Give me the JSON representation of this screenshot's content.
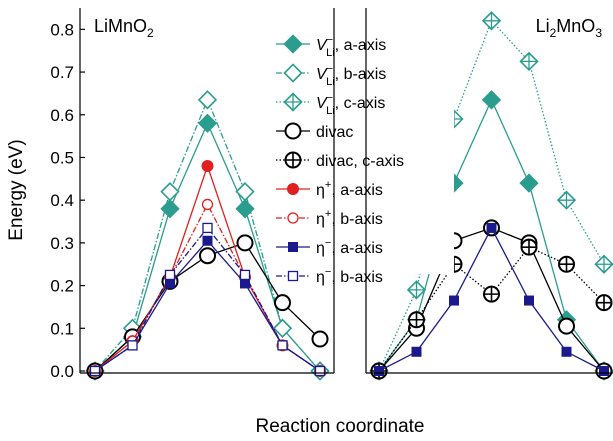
{
  "chart_data": {
    "type": "line",
    "xlabel": "Reaction coordinate",
    "ylabel": "Energy (eV)",
    "ylim": [
      0.0,
      0.85
    ],
    "yticks": [
      0.0,
      0.1,
      0.2,
      0.3,
      0.4,
      0.5,
      0.6,
      0.7,
      0.8
    ],
    "ytick_labels": [
      "0.0",
      "0.1",
      "0.2",
      "0.3",
      "0.4",
      "0.5",
      "0.6",
      "0.7",
      "0.8"
    ],
    "grid": false,
    "legend_placement": "top-center",
    "panels": [
      {
        "title": "LiMnO",
        "title_sub": "2",
        "series": [
          {
            "key": "va",
            "values": [
              0.0,
              0.08,
              0.38,
              0.58,
              0.38,
              0.1,
              0.0
            ]
          },
          {
            "key": "vb",
            "values": [
              0.0,
              0.1,
              0.42,
              0.635,
              0.42,
              0.1,
              0.0
            ]
          },
          {
            "key": "dv",
            "values": [
              0.0,
              0.08,
              0.21,
              0.27,
              0.3,
              0.16,
              0.075
            ]
          },
          {
            "key": "ea",
            "values": [
              0.0,
              0.07,
              0.22,
              0.48,
              0.22,
              0.06,
              0.0
            ]
          },
          {
            "key": "eb",
            "values": [
              0.0,
              0.07,
              0.22,
              0.39,
              0.22,
              0.06,
              0.0
            ]
          },
          {
            "key": "ma",
            "values": [
              0.0,
              0.06,
              0.205,
              0.305,
              0.205,
              0.06,
              0.0
            ]
          },
          {
            "key": "mb",
            "values": [
              0.0,
              0.06,
              0.225,
              0.335,
              0.225,
              0.06,
              0.0
            ]
          }
        ]
      },
      {
        "title": "Li",
        "title_sub": "2",
        "title_rest": "MnO",
        "title_sub2": "3",
        "series": [
          {
            "key": "va",
            "values": [
              0.0,
              0.12,
              0.44,
              0.635,
              0.44,
              0.12,
              0.0
            ]
          },
          {
            "key": "vc",
            "values": [
              0.0,
              0.19,
              0.59,
              0.82,
              0.725,
              0.4,
              0.25
            ]
          },
          {
            "key": "dv",
            "values": [
              0.0,
              0.1,
              0.305,
              0.335,
              0.3,
              0.105,
              0.0
            ]
          },
          {
            "key": "dc",
            "values": [
              0.0,
              0.12,
              0.25,
              0.18,
              0.29,
              0.25,
              0.16
            ]
          },
          {
            "key": "ma",
            "values": [
              0.0,
              0.045,
              0.165,
              0.335,
              0.165,
              0.045,
              0.0
            ]
          }
        ]
      }
    ],
    "legend": [
      {
        "key": "va",
        "label_pre": "V",
        "label_sup": "−",
        "label_sub": "Li",
        "label_post": ", a-axis",
        "color": "#2a9d8f",
        "marker": "diamond-filled",
        "dash": "solid"
      },
      {
        "key": "vb",
        "label_pre": "V",
        "label_sup": "−",
        "label_sub": "Li",
        "label_post": ", b-axis",
        "color": "#2a9d8f",
        "marker": "diamond-open",
        "dash": "dashdot"
      },
      {
        "key": "vc",
        "label_pre": "V",
        "label_sup": "−",
        "label_sub": "Li",
        "label_post": ", c-axis",
        "color": "#2a9d8f",
        "marker": "diamond-plus",
        "dash": "dotted"
      },
      {
        "key": "dv",
        "label_pre": "divac",
        "label_sup": "",
        "label_sub": "",
        "label_post": "",
        "color": "#000000",
        "marker": "circle-open",
        "dash": "solid"
      },
      {
        "key": "dc",
        "label_pre": "divac, c-axis",
        "label_sup": "",
        "label_sub": "",
        "label_post": "",
        "color": "#000000",
        "marker": "circle-plus",
        "dash": "dotted"
      },
      {
        "key": "ea",
        "label_pre": "η",
        "label_sup": "+",
        "label_sub": "",
        "label_post": ", a-axis",
        "color": "#e02020",
        "marker": "circle-filled",
        "dash": "solid"
      },
      {
        "key": "eb",
        "label_pre": "η",
        "label_sup": "+",
        "label_sub": "",
        "label_post": ", b-axis",
        "color": "#e02020",
        "marker": "circle-open-small",
        "dash": "dashdot"
      },
      {
        "key": "ma",
        "label_pre": "η",
        "label_sup": "−",
        "label_sub": "",
        "label_post": ", a-axis",
        "color": "#1a1a8c",
        "marker": "square-filled",
        "dash": "solid"
      },
      {
        "key": "mb",
        "label_pre": "η",
        "label_sup": "−",
        "label_sub": "",
        "label_post": ", b-axis",
        "color": "#1a1a8c",
        "marker": "square-open",
        "dash": "dashdot"
      }
    ]
  }
}
